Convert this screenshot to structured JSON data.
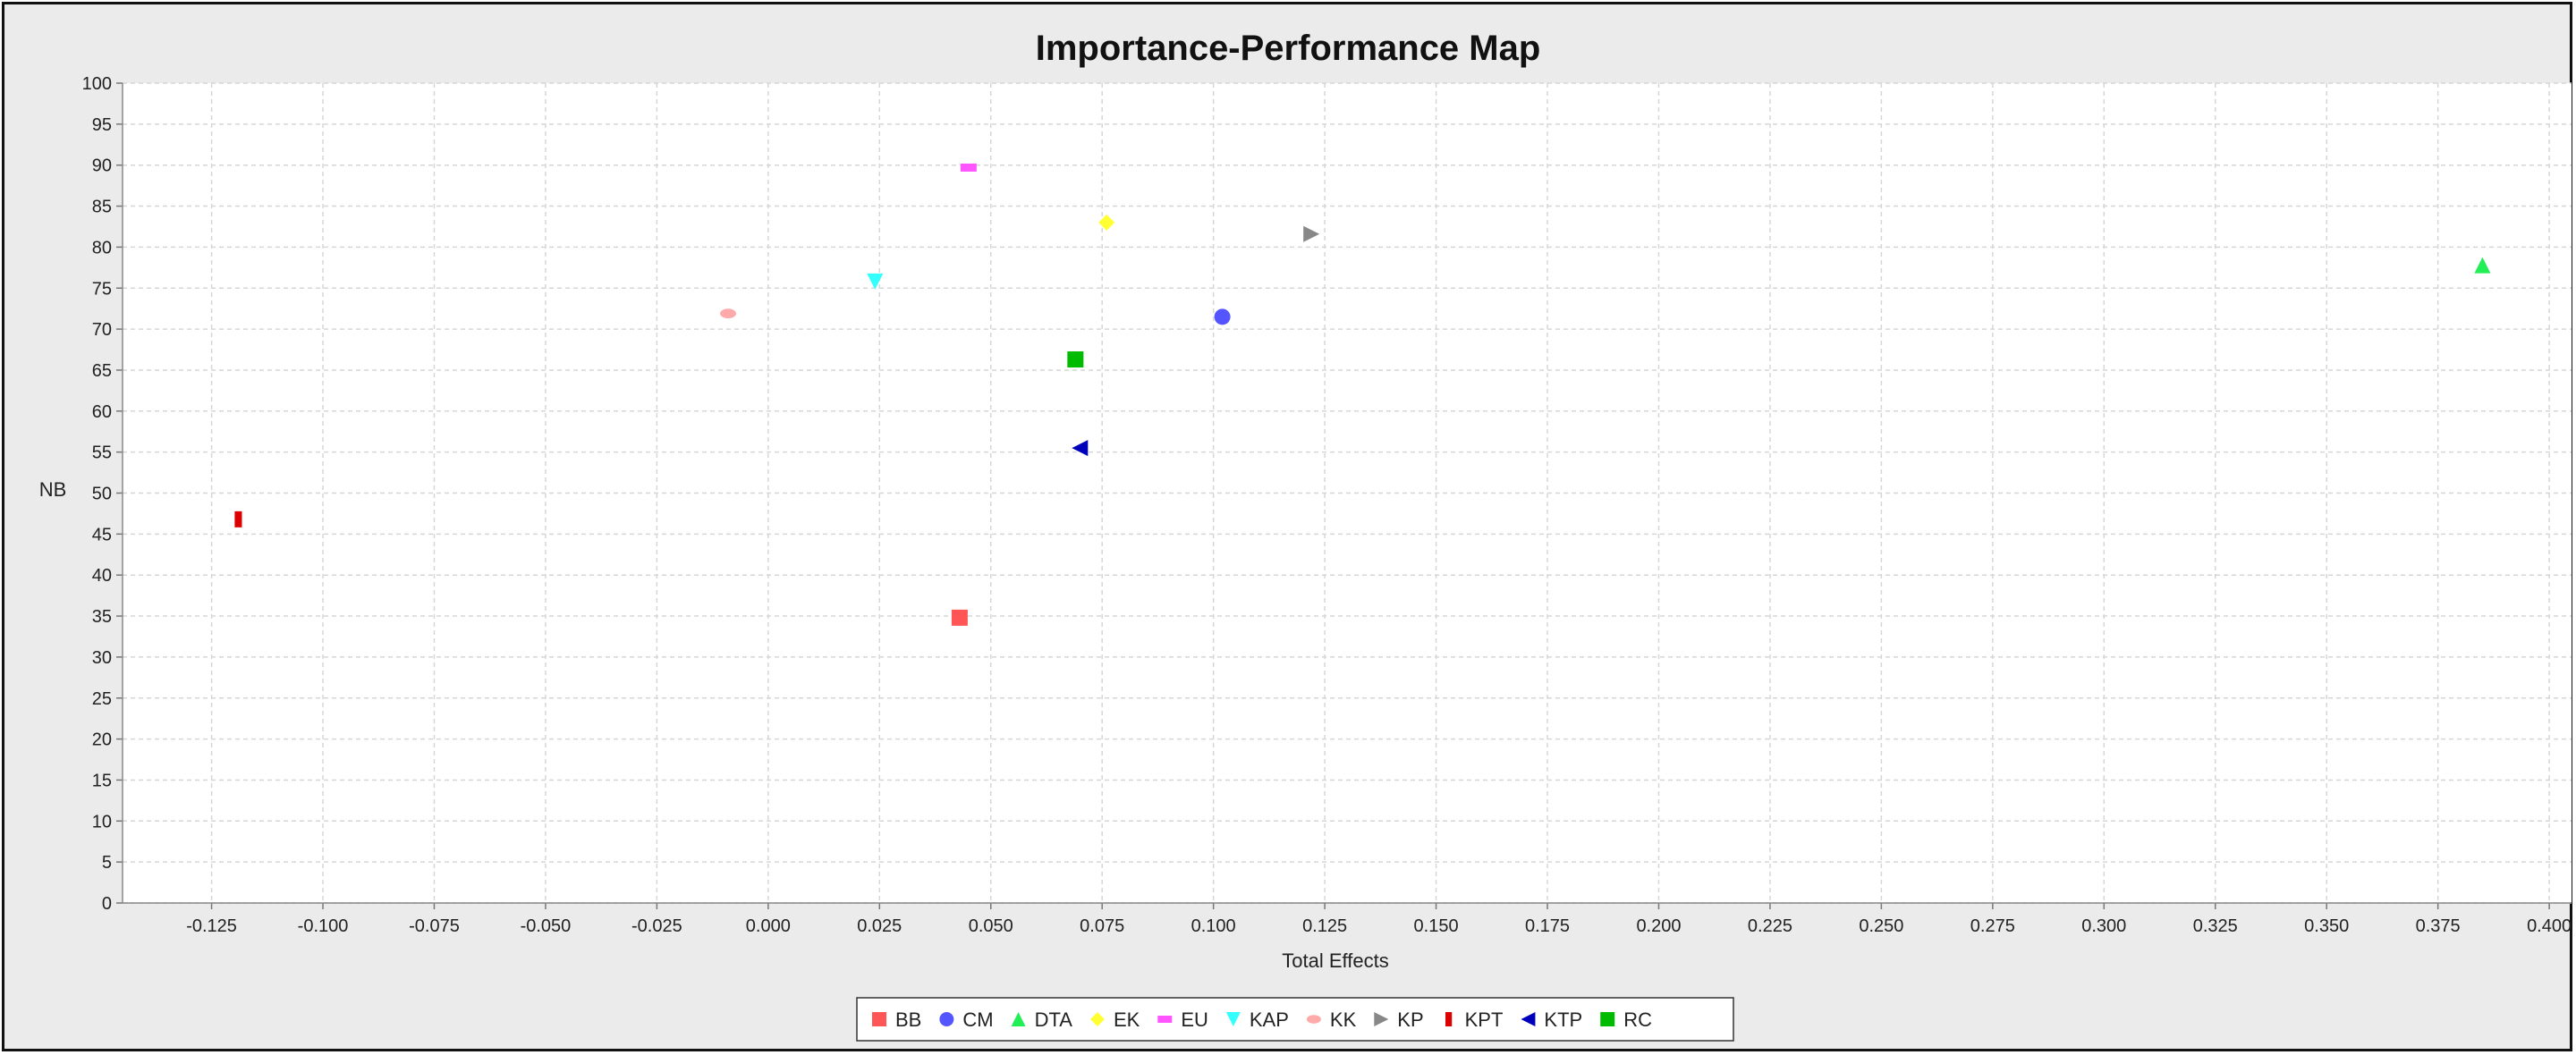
{
  "chart_data": {
    "type": "scatter",
    "title": "Importance-Performance Map",
    "xlabel": "Total Effects",
    "ylabel": "NB",
    "xlim": [
      -0.145,
      0.405
    ],
    "ylim": [
      0,
      100
    ],
    "x_ticks": [
      "-0.125",
      "-0.100",
      "-0.075",
      "-0.050",
      "-0.025",
      "0.000",
      "0.025",
      "0.050",
      "0.075",
      "0.100",
      "0.125",
      "0.150",
      "0.175",
      "0.200",
      "0.225",
      "0.250",
      "0.275",
      "0.300",
      "0.325",
      "0.350",
      "0.375",
      "0.400"
    ],
    "y_ticks": [
      "0",
      "5",
      "10",
      "15",
      "20",
      "25",
      "30",
      "35",
      "40",
      "45",
      "50",
      "55",
      "60",
      "65",
      "70",
      "75",
      "80",
      "85",
      "90",
      "95",
      "100"
    ],
    "grid": true,
    "legend_position": "bottom",
    "series": [
      {
        "name": "BB",
        "color": "#ff5555",
        "marker": "square",
        "x": 0.043,
        "y": 34.8
      },
      {
        "name": "CM",
        "color": "#5555ff",
        "marker": "circle",
        "x": 0.102,
        "y": 71.5
      },
      {
        "name": "DTA",
        "color": "#22ee55",
        "marker": "triangle-up",
        "x": 0.385,
        "y": 77.8
      },
      {
        "name": "EK",
        "color": "#ffff33",
        "marker": "diamond",
        "x": 0.076,
        "y": 83.0
      },
      {
        "name": "EU",
        "color": "#ff55ff",
        "marker": "hbar",
        "x": 0.045,
        "y": 89.7
      },
      {
        "name": "KAP",
        "color": "#33ffff",
        "marker": "triangle-down",
        "x": 0.024,
        "y": 75.8
      },
      {
        "name": "KK",
        "color": "#ffaaaa",
        "marker": "ellipse",
        "x": -0.009,
        "y": 71.9
      },
      {
        "name": "KP",
        "color": "#888888",
        "marker": "triangle-right",
        "x": 0.122,
        "y": 81.6
      },
      {
        "name": "KPT",
        "color": "#dd0000",
        "marker": "vbar",
        "x": -0.119,
        "y": 46.8
      },
      {
        "name": "KTP",
        "color": "#0000bb",
        "marker": "triangle-left",
        "x": 0.07,
        "y": 55.5
      },
      {
        "name": "RC",
        "color": "#00bb00",
        "marker": "square",
        "x": 0.069,
        "y": 66.3
      }
    ]
  }
}
